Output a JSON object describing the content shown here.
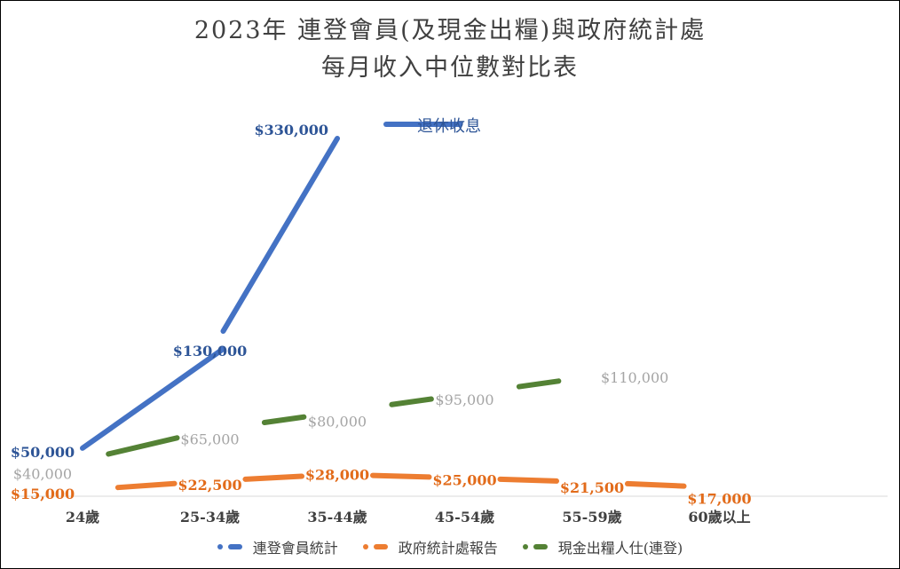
{
  "title_line1": "2023年 連登會員(及現金出糧)與政府統計處",
  "title_line2": "每月收入中位數對比表",
  "chart_data": {
    "type": "line",
    "categories": [
      "24歲",
      "25-34歲",
      "35-44歲",
      "45-54歲",
      "55-59歲",
      "60歲以上"
    ],
    "series": [
      {
        "name": "連登會員統計",
        "color": "#4472c4",
        "values": [
          50000,
          130000,
          330000,
          330000,
          null,
          null
        ],
        "labels": [
          "$50,000",
          "$130,000",
          "$330,000",
          null,
          null,
          null
        ],
        "label_color": "#2e5597"
      },
      {
        "name": "政府統計處報告",
        "color": "#ed7d31",
        "values": [
          15000,
          22500,
          28000,
          25000,
          21500,
          17000
        ],
        "labels": [
          "$15,000",
          "$22,500",
          "$28,000",
          "$25,000",
          "$21,500",
          "$17,000"
        ],
        "label_color": "#e26b1a"
      },
      {
        "name": "現金出糧人仕(連登)",
        "color": "#548235",
        "values": [
          40000,
          65000,
          80000,
          95000,
          110000,
          null
        ],
        "labels": [
          "$40,000",
          "$65,000",
          "$80,000",
          "$95,000",
          "$110,000",
          null
        ],
        "label_color": "#a5a5a5"
      }
    ],
    "annotations": [
      {
        "text": "退休收息",
        "series": "連登會員統計",
        "color": "#2e5597"
      }
    ],
    "ylim": [
      0,
      350000
    ],
    "grid": false,
    "legend": "bottom"
  }
}
